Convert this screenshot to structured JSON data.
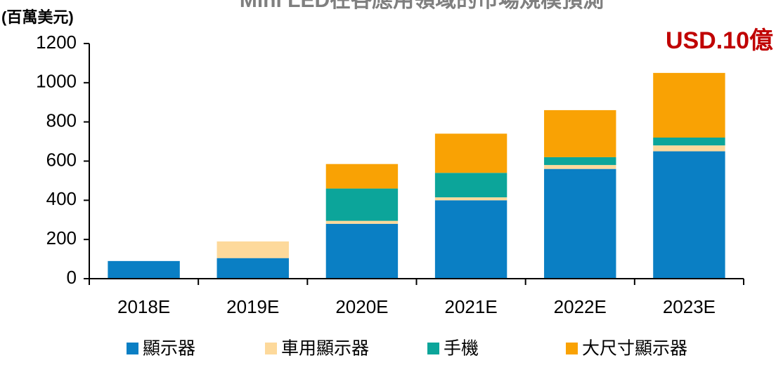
{
  "chart_data": {
    "type": "stacked_bar",
    "title": "Mini LED在各應用領域的市場規模預測",
    "y_label": "(百萬美元)",
    "annotation": "USD.10億",
    "categories": [
      "2018E",
      "2019E",
      "2020E",
      "2021E",
      "2022E",
      "2023E"
    ],
    "series": [
      {
        "name": "顯示器",
        "color": "#0a7fc4",
        "values": [
          90,
          105,
          280,
          400,
          560,
          650
        ]
      },
      {
        "name": "車用顯示器",
        "color": "#fdd99b",
        "values": [
          0,
          85,
          15,
          15,
          20,
          30
        ]
      },
      {
        "name": "手機",
        "color": "#0ca59a",
        "values": [
          0,
          0,
          165,
          125,
          40,
          40
        ]
      },
      {
        "name": "大尺寸顯示器",
        "color": "#f9a204",
        "values": [
          0,
          0,
          125,
          200,
          240,
          330
        ]
      }
    ],
    "ylim": [
      0,
      1200
    ],
    "yticks": [
      0,
      200,
      400,
      600,
      800,
      1000,
      1200
    ]
  }
}
